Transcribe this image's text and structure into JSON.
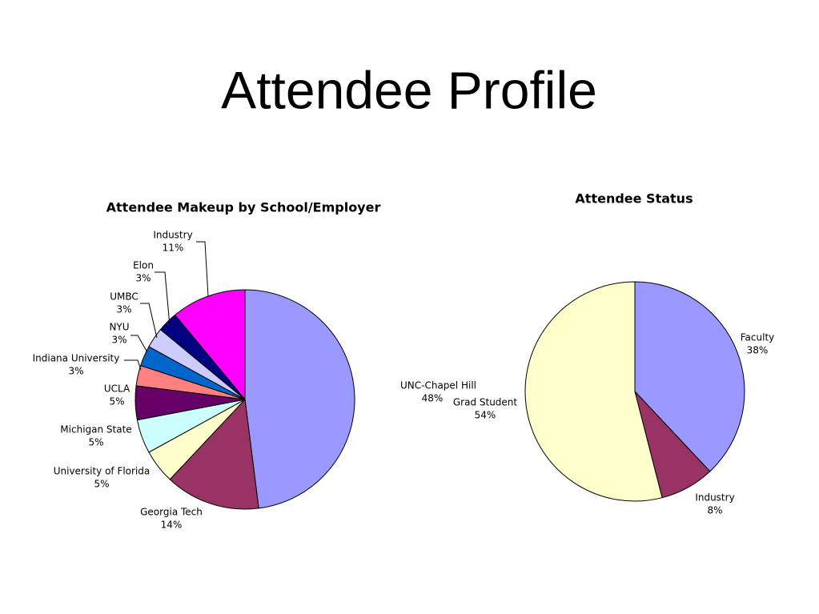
{
  "title": "Attendee Profile",
  "chart_data": [
    {
      "type": "pie",
      "title": "Attendee Makeup by School/Employer",
      "categories": [
        "UNC-Chapel Hill",
        "Georgia Tech",
        "University of Florida",
        "Michigan State",
        "UCLA",
        "Indiana University",
        "NYU",
        "UMBC",
        "Elon",
        "Industry"
      ],
      "values": [
        48,
        14,
        5,
        5,
        5,
        3,
        3,
        3,
        3,
        11
      ],
      "value_labels": [
        "48%",
        "14%",
        "5%",
        "5%",
        "5%",
        "3%",
        "3%",
        "3%",
        "3%",
        "11%"
      ],
      "colors": [
        "#9999ff",
        "#993366",
        "#ffffcc",
        "#ccffff",
        "#660066",
        "#ff8080",
        "#0066cc",
        "#ccccff",
        "#000080",
        "#ff00ff"
      ]
    },
    {
      "type": "pie",
      "title": "Attendee Status",
      "categories": [
        "Faculty",
        "Industry",
        "Grad Student"
      ],
      "values": [
        38,
        8,
        54
      ],
      "value_labels": [
        "38%",
        "8%",
        "54%"
      ],
      "colors": [
        "#9999ff",
        "#993366",
        "#ffffcc"
      ]
    }
  ]
}
